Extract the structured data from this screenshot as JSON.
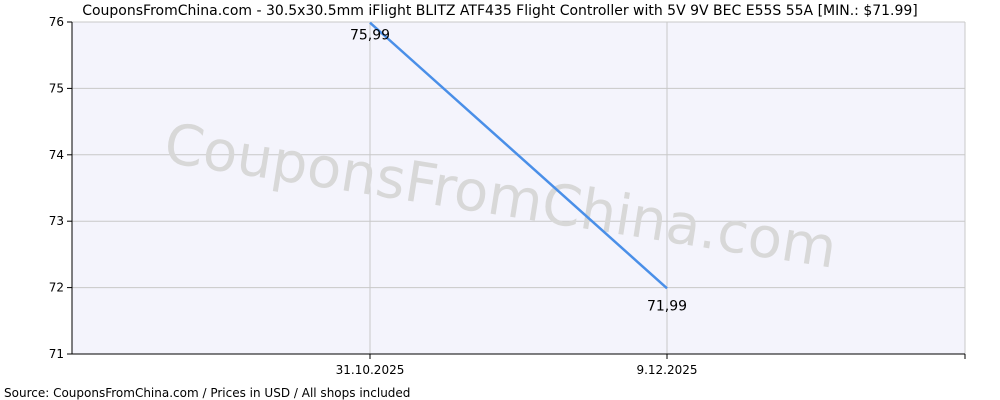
{
  "chart_data": {
    "type": "line",
    "title": "CouponsFromChina.com - 30.5x30.5mm iFlight BLITZ ATF435 Flight Controller with 5V 9V BEC E55S 55A [MIN.: $71.99]",
    "source": "Source: CouponsFromChina.com / Prices in USD / All shops included",
    "watermark": "CouponsFromChina.com",
    "x_tick_labels": [
      "31.10.2025",
      "9.12.2025"
    ],
    "y_ticks": [
      71,
      72,
      73,
      74,
      75,
      76
    ],
    "ylim": [
      71,
      76
    ],
    "grid": true,
    "series": [
      {
        "values": [
          75.99,
          71.99
        ],
        "labels": [
          "75,99",
          "71,99"
        ],
        "color": "#4a8fe8"
      }
    ],
    "colors": {
      "plot_background": "#f4f4fc",
      "grid": "#c8c8c8",
      "axis": "#000000"
    }
  }
}
